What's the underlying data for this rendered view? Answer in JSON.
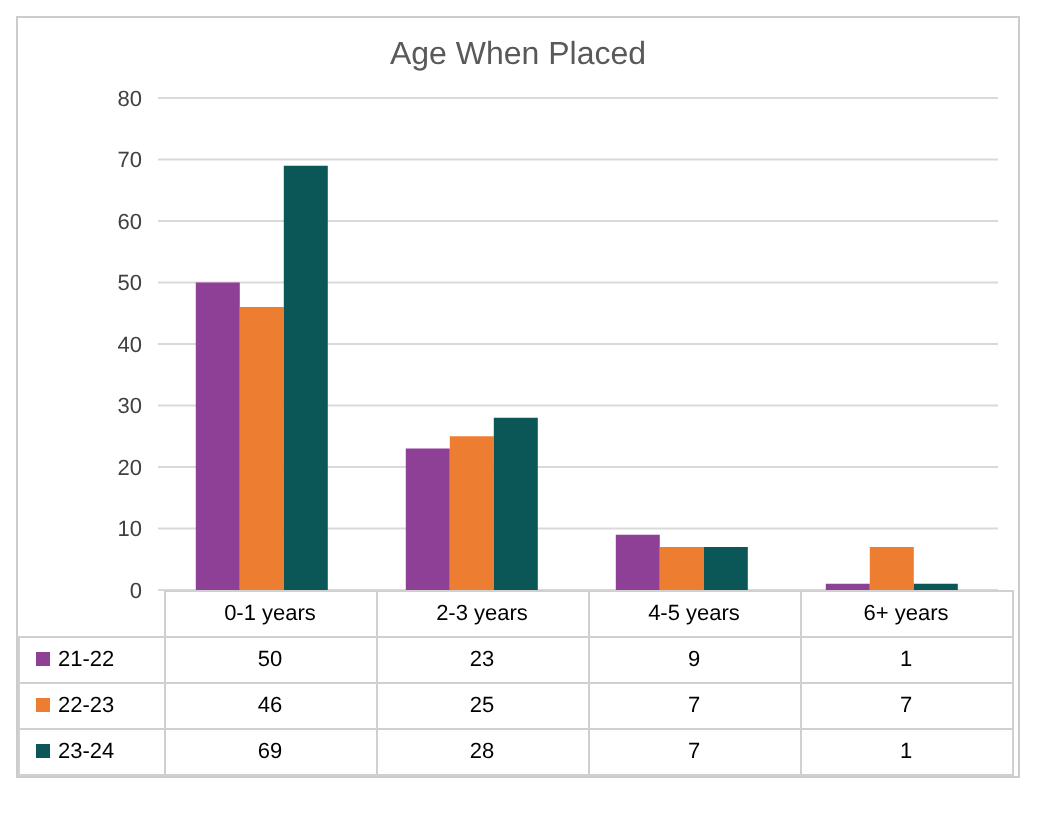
{
  "chart_data": {
    "type": "bar",
    "title": "Age When Placed",
    "categories": [
      "0-1 years",
      "2-3 years",
      "4-5 years",
      "6+ years"
    ],
    "series": [
      {
        "name": "21-22",
        "color": "#8e3f96",
        "values": [
          50,
          23,
          9,
          1
        ]
      },
      {
        "name": "22-23",
        "color": "#ed7d31",
        "values": [
          46,
          25,
          7,
          7
        ]
      },
      {
        "name": "23-24",
        "color": "#0b5757",
        "values": [
          69,
          28,
          7,
          1
        ]
      }
    ],
    "ylim": [
      0,
      80
    ],
    "yticks": [
      0,
      10,
      20,
      30,
      40,
      50,
      60,
      70,
      80
    ],
    "grid": "y",
    "legend": "bottom",
    "data_labels": true
  }
}
